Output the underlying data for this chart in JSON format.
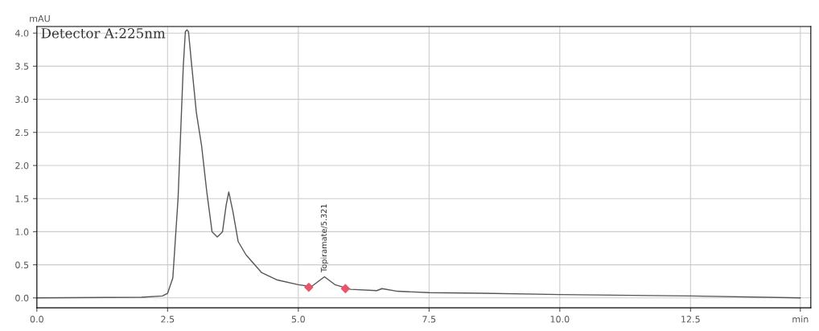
{
  "chart_data": {
    "type": "line",
    "ylabel": "mAU",
    "grid": true,
    "legend": false,
    "xlim": [
      0,
      14.8
    ],
    "ylim": [
      -0.15,
      4.1
    ],
    "xticks": [
      {
        "value": 0,
        "label": "0.0"
      },
      {
        "value": 2.5,
        "label": "2.5"
      },
      {
        "value": 5,
        "label": "5.0"
      },
      {
        "value": 7.5,
        "label": "7.5"
      },
      {
        "value": 10,
        "label": "10.0"
      },
      {
        "value": 12.5,
        "label": "12.5"
      },
      {
        "value": 14.6,
        "label": "min"
      }
    ],
    "yticks": [
      {
        "value": 0,
        "label": "0.0"
      },
      {
        "value": 0.5,
        "label": "0.5"
      },
      {
        "value": 1,
        "label": "1.0"
      },
      {
        "value": 1.5,
        "label": "1.5"
      },
      {
        "value": 2,
        "label": "2.0"
      },
      {
        "value": 2.5,
        "label": "2.5"
      },
      {
        "value": 3,
        "label": "3.0"
      },
      {
        "value": 3.5,
        "label": "3.5"
      },
      {
        "value": 4,
        "label": "4.0"
      }
    ],
    "series": [
      {
        "color": "#555555",
        "marker": "none",
        "x": [
          0,
          2.0,
          2.4,
          2.5,
          2.6,
          2.7,
          2.8,
          2.84,
          2.87,
          2.9,
          2.95,
          3.05,
          3.15,
          3.25,
          3.35,
          3.45,
          3.55,
          3.62,
          3.67,
          3.75,
          3.85,
          4.0,
          4.3,
          4.6,
          5.0,
          5.25,
          5.5,
          5.7,
          6.0,
          6.5,
          6.6,
          6.9,
          7.5,
          8.5,
          10,
          12.5,
          14.6
        ],
        "values": [
          0.0,
          0.01,
          0.03,
          0.07,
          0.3,
          1.5,
          3.5,
          4.02,
          4.05,
          4.02,
          3.6,
          2.8,
          2.3,
          1.6,
          1.0,
          0.92,
          1.0,
          1.4,
          1.6,
          1.3,
          0.85,
          0.65,
          0.38,
          0.27,
          0.2,
          0.17,
          0.32,
          0.2,
          0.13,
          0.11,
          0.14,
          0.1,
          0.08,
          0.07,
          0.05,
          0.03,
          0.0
        ]
      },
      {
        "type": "scatter",
        "color": "#e8556a",
        "marker": "diamond",
        "x": [
          5.2,
          5.9
        ],
        "values": [
          0.16,
          0.14
        ]
      }
    ],
    "annotations": [
      "Detector A:225nm",
      {
        "text": "Topiramate/5.321",
        "x": 5.5,
        "y": 0.32
      }
    ]
  }
}
